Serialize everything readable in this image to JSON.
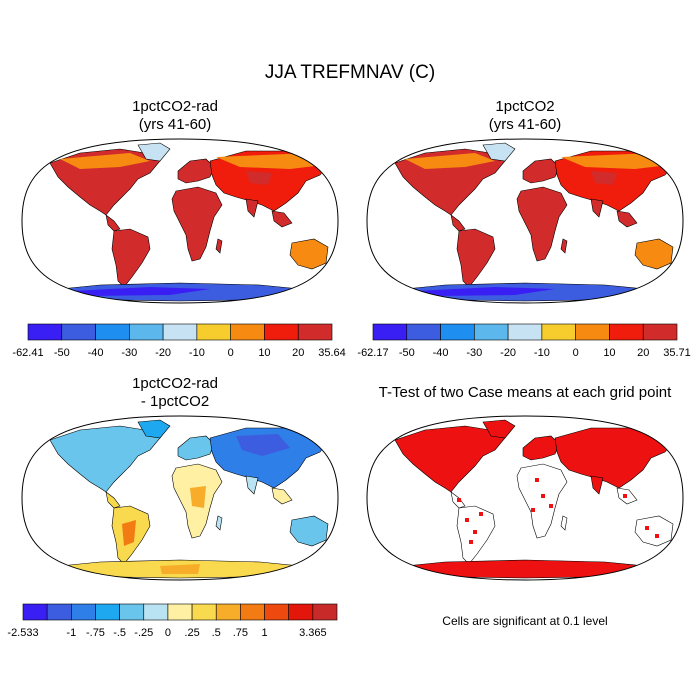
{
  "title": "JJA TREFMNAV (C)",
  "panels": [
    {
      "id": "tl",
      "title_line1": "1pctCO2-rad",
      "title_line2": "(yrs 41-60)",
      "type": "field"
    },
    {
      "id": "tr",
      "title_line1": "1pctCO2",
      "title_line2": "(yrs 41-60)",
      "type": "field"
    },
    {
      "id": "bl",
      "title_line1": "1pctCO2-rad",
      "title_line2": "- 1pctCO2",
      "type": "diff"
    },
    {
      "id": "br",
      "title_line1": "T-Test of two Case means at each grid point",
      "title_line2": "",
      "type": "ttest"
    }
  ],
  "colorbars": {
    "tl": {
      "colors": [
        "#3a1ff5",
        "#3d5de0",
        "#1e8ef0",
        "#5bb7ec",
        "#c7e3f3",
        "#f7cd2e",
        "#f78b12",
        "#f01d0d",
        "#d22b2b"
      ],
      "labels": [
        "-62.41",
        "-50",
        "-40",
        "-30",
        "-20",
        "-10",
        "0",
        "10",
        "20",
        "35.64"
      ]
    },
    "tr": {
      "colors": [
        "#3a1ff5",
        "#3d5de0",
        "#1e8ef0",
        "#5bb7ec",
        "#c7e3f3",
        "#f7cd2e",
        "#f78b12",
        "#f01d0d",
        "#d22b2b"
      ],
      "labels": [
        "-62.17",
        "-50",
        "-40",
        "-30",
        "-20",
        "-10",
        "0",
        "10",
        "20",
        "35.71"
      ]
    },
    "bl": {
      "colors": [
        "#3a1ff5",
        "#3d5de0",
        "#2f7fe8",
        "#1ea8f0",
        "#69c5ec",
        "#b9e3f2",
        "#fff0a3",
        "#f9d94e",
        "#f7ad2a",
        "#f37b14",
        "#ee4a10",
        "#e3160c",
        "#c82a2a"
      ],
      "labels": [
        "-2.533",
        "",
        "-1",
        "-.75",
        "-.5",
        "-.25",
        "0",
        ".25",
        ".5",
        ".75",
        "1",
        "",
        "3.365"
      ]
    }
  },
  "footnote": "Cells are significant at 0.1 level"
}
